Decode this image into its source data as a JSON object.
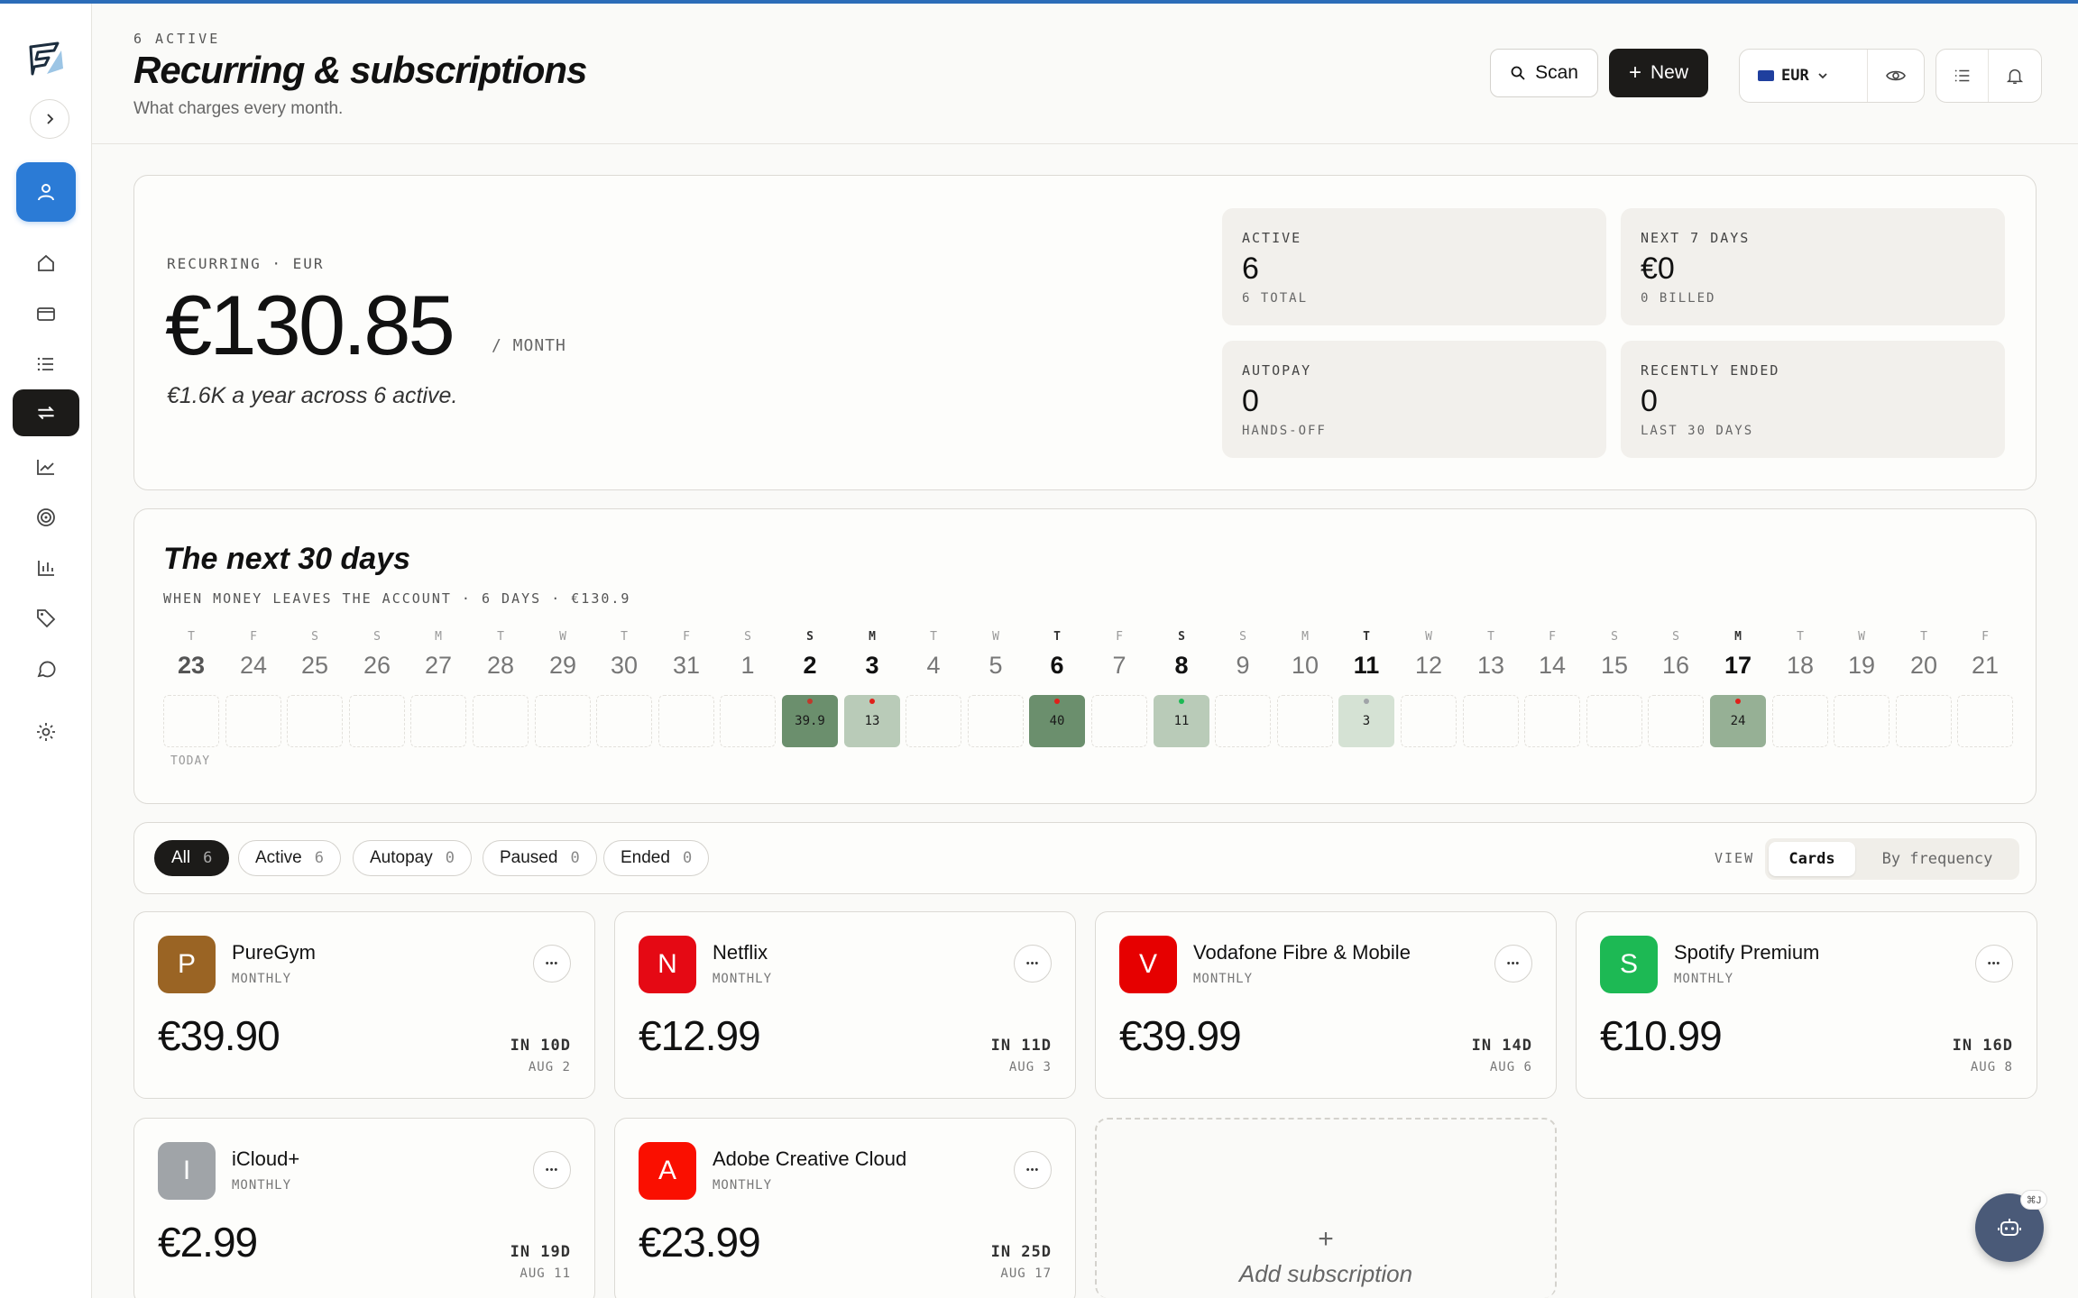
{
  "header": {
    "eyebrow": "6 ACTIVE",
    "title": "Recurring & subscriptions",
    "subtitle": "What charges every month.",
    "scan_label": "Scan",
    "new_label": "New",
    "currency": "EUR"
  },
  "hero": {
    "label": "RECURRING · EUR",
    "amount": "€130.85",
    "unit": "/ MONTH",
    "note": "€1.6K a year across 6 active.",
    "stats": [
      {
        "label": "ACTIVE",
        "value": "6",
        "sub": "6 TOTAL"
      },
      {
        "label": "NEXT 7 DAYS",
        "value": "€0",
        "sub": "0 BILLED"
      },
      {
        "label": "AUTOPAY",
        "value": "0",
        "sub": "HANDS-OFF"
      },
      {
        "label": "RECENTLY ENDED",
        "value": "0",
        "sub": "LAST 30 DAYS"
      }
    ]
  },
  "calendar": {
    "title": "The next 30 days",
    "subtitle": "WHEN MONEY LEAVES THE ACCOUNT · 6 DAYS · €130.9",
    "today_label": "TODAY",
    "days": [
      {
        "dow": "T",
        "num": "23"
      },
      {
        "dow": "F",
        "num": "24"
      },
      {
        "dow": "S",
        "num": "25"
      },
      {
        "dow": "S",
        "num": "26"
      },
      {
        "dow": "M",
        "num": "27"
      },
      {
        "dow": "T",
        "num": "28"
      },
      {
        "dow": "W",
        "num": "29"
      },
      {
        "dow": "T",
        "num": "30"
      },
      {
        "dow": "F",
        "num": "31"
      },
      {
        "dow": "S",
        "num": "1"
      },
      {
        "dow": "S",
        "num": "2"
      },
      {
        "dow": "M",
        "num": "3"
      },
      {
        "dow": "T",
        "num": "4"
      },
      {
        "dow": "W",
        "num": "5"
      },
      {
        "dow": "T",
        "num": "6"
      },
      {
        "dow": "F",
        "num": "7"
      },
      {
        "dow": "S",
        "num": "8"
      },
      {
        "dow": "S",
        "num": "9"
      },
      {
        "dow": "M",
        "num": "10"
      },
      {
        "dow": "T",
        "num": "11"
      },
      {
        "dow": "W",
        "num": "12"
      },
      {
        "dow": "T",
        "num": "13"
      },
      {
        "dow": "F",
        "num": "14"
      },
      {
        "dow": "S",
        "num": "15"
      },
      {
        "dow": "S",
        "num": "16"
      },
      {
        "dow": "M",
        "num": "17"
      },
      {
        "dow": "T",
        "num": "18"
      },
      {
        "dow": "W",
        "num": "19"
      },
      {
        "dow": "T",
        "num": "20"
      },
      {
        "dow": "F",
        "num": "21"
      }
    ],
    "charges": [
      {
        "day_index": 10,
        "amount": "39.9",
        "color": "#6b8f6d",
        "dot": "#c0392b"
      },
      {
        "day_index": 11,
        "amount": "13",
        "color": "#b9cbb8",
        "dot": "#e0201a"
      },
      {
        "day_index": 14,
        "amount": "40",
        "color": "#6b8f6d",
        "dot": "#e0201a"
      },
      {
        "day_index": 16,
        "amount": "11",
        "color": "#b9cbb8",
        "dot": "#1db954"
      },
      {
        "day_index": 19,
        "amount": "3",
        "color": "#d5e2d4",
        "dot": "#a0a4a8"
      },
      {
        "day_index": 25,
        "amount": "24",
        "color": "#96b095",
        "dot": "#e0201a"
      }
    ]
  },
  "filters": [
    {
      "label": "All",
      "count": "6",
      "selected": true
    },
    {
      "label": "Active",
      "count": "6",
      "selected": false
    },
    {
      "label": "Autopay",
      "count": "0",
      "selected": false
    },
    {
      "label": "Paused",
      "count": "0",
      "selected": false
    },
    {
      "label": "Ended",
      "count": "0",
      "selected": false
    }
  ],
  "view": {
    "label": "VIEW",
    "options": [
      "Cards",
      "By frequency"
    ],
    "selected": "Cards"
  },
  "subscriptions": [
    {
      "initial": "P",
      "name": "PureGym",
      "frequency": "MONTHLY",
      "amount": "€39.90",
      "due": "IN 10D",
      "date": "AUG 2",
      "color": "#9a6424"
    },
    {
      "initial": "N",
      "name": "Netflix",
      "frequency": "MONTHLY",
      "amount": "€12.99",
      "due": "IN 11D",
      "date": "AUG 3",
      "color": "#e50914"
    },
    {
      "initial": "V",
      "name": "Vodafone Fibre & Mobile",
      "frequency": "MONTHLY",
      "amount": "€39.99",
      "due": "IN 14D",
      "date": "AUG 6",
      "color": "#e60000"
    },
    {
      "initial": "S",
      "name": "Spotify Premium",
      "frequency": "MONTHLY",
      "amount": "€10.99",
      "due": "IN 16D",
      "date": "AUG 8",
      "color": "#1db954"
    },
    {
      "initial": "I",
      "name": "iCloud+",
      "frequency": "MONTHLY",
      "amount": "€2.99",
      "due": "IN 19D",
      "date": "AUG 11",
      "color": "#a0a4a8"
    },
    {
      "initial": "A",
      "name": "Adobe Creative Cloud",
      "frequency": "MONTHLY",
      "amount": "€23.99",
      "due": "IN 25D",
      "date": "AUG 17",
      "color": "#fa0f00"
    }
  ],
  "add_card": {
    "plus": "+",
    "label": "Add subscription"
  },
  "assistant": {
    "shortcut": "⌘J"
  },
  "colors": {
    "accent": "#2b7bd6",
    "dark": "#1c1b19",
    "top_line": "#2b6cb8"
  },
  "icons": [
    "logo-icon",
    "chevron-right-icon",
    "user-icon",
    "home-icon",
    "wallet-icon",
    "list-icon",
    "recurring-icon",
    "trend-icon",
    "target-icon",
    "bar-chart-icon",
    "tag-icon",
    "chat-icon",
    "gear-icon",
    "search-icon",
    "plus-icon",
    "flag-icon",
    "chevron-down-icon",
    "eye-icon",
    "bell-icon",
    "more-icon",
    "bot-icon"
  ]
}
